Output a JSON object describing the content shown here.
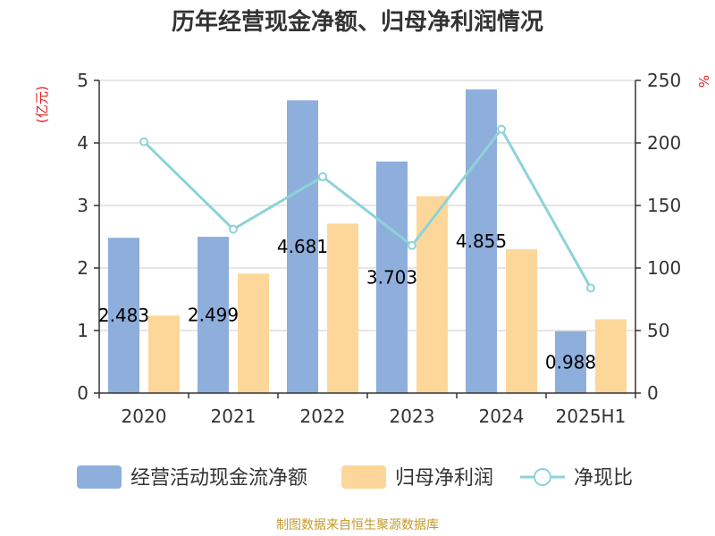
{
  "title": "历年经营现金净额、归母净利润情况",
  "source": "制图数据来自恒生聚源数据库",
  "colors": {
    "bar1": "#8eaedc",
    "bar2": "#fdd799",
    "line": "#8dd3d8",
    "unit": "#e02020",
    "axis": "#333333",
    "grid": "#cccccc"
  },
  "chart_data": {
    "type": "bar",
    "categories": [
      "2020",
      "2021",
      "2022",
      "2023",
      "2024",
      "2025H1"
    ],
    "y_left": {
      "label": "(亿元)",
      "min": 0,
      "max": 5,
      "ticks": [
        0,
        1,
        2,
        3,
        4,
        5
      ]
    },
    "y_right": {
      "label": "%",
      "min": 0,
      "max": 250,
      "ticks": [
        0,
        50,
        100,
        150,
        200,
        250
      ]
    },
    "series": [
      {
        "name": "经营活动现金流净额",
        "type": "bar",
        "axis": "left",
        "values": [
          2.483,
          2.499,
          4.681,
          3.703,
          4.855,
          0.988
        ],
        "labels": [
          "2.483",
          "2.499",
          "4.681",
          "3.703",
          "4.855",
          "0.988"
        ]
      },
      {
        "name": "归母净利润",
        "type": "bar",
        "axis": "left",
        "values": [
          1.24,
          1.91,
          2.71,
          3.15,
          2.3,
          1.18
        ]
      },
      {
        "name": "净现比",
        "type": "line",
        "axis": "right",
        "values": [
          201,
          131,
          173,
          118,
          211,
          84
        ]
      }
    ],
    "grid": true,
    "legend": "bottom"
  }
}
